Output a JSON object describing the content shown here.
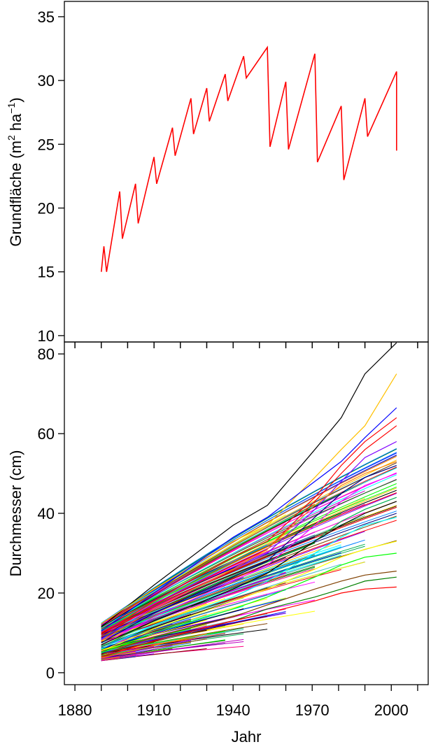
{
  "chart_data": [
    {
      "type": "line",
      "ylabel": "Grundfläche (m² ha⁻¹)",
      "ylabel_parts": {
        "main": "Grundfläche (m",
        "sup1": "2",
        "mid": " ha",
        "sup2": "−1",
        "end": ")"
      },
      "xlim": [
        1876,
        2014
      ],
      "ylim": [
        9.5,
        36.2
      ],
      "yticks": [
        10,
        15,
        20,
        25,
        30,
        35
      ],
      "ytick_labels": [
        "10",
        "15",
        "20",
        "25",
        "30",
        "35"
      ],
      "series": [
        {
          "color": "#ff0000",
          "x": [
            1890,
            1891,
            1892,
            1897,
            1898,
            1903,
            1904,
            1910,
            1911,
            1917,
            1918,
            1924,
            1925,
            1930,
            1931,
            1937,
            1938,
            1944,
            1945,
            1953,
            1954,
            1960,
            1961,
            1971,
            1972,
            1981,
            1982,
            1990,
            1991,
            2002,
            2002
          ],
          "y": [
            15.0,
            17.0,
            15.0,
            21.3,
            17.6,
            21.9,
            18.8,
            24.0,
            21.9,
            26.3,
            24.1,
            28.6,
            25.8,
            29.4,
            26.8,
            30.5,
            28.4,
            31.9,
            30.2,
            32.6,
            24.8,
            29.9,
            24.6,
            32.1,
            23.6,
            28.0,
            22.2,
            28.6,
            25.6,
            30.7,
            24.5
          ]
        }
      ]
    },
    {
      "type": "line",
      "xlabel": "Jahr",
      "ylabel": "Durchmesser (cm)",
      "xlim": [
        1876,
        2014
      ],
      "ylim": [
        -3,
        83
      ],
      "xticks": [
        1880,
        1910,
        1940,
        1970,
        2000
      ],
      "xtick_labels": [
        "1880",
        "1910",
        "1940",
        "1970",
        "2000"
      ],
      "yticks": [
        0,
        20,
        40,
        60,
        80
      ],
      "ytick_labels": [
        "0",
        "20",
        "40",
        "60",
        "80"
      ],
      "series_note": "Approximately 220 individual tree diameter trajectories (one line per tree), each a different colour; values estimated from the plot.",
      "generator": {
        "count": 220,
        "start_year": 1890,
        "measure_years": [
          1890,
          1891,
          1897,
          1903,
          1910,
          1917,
          1924,
          1930,
          1937,
          1944,
          1953,
          1960,
          1971,
          1981,
          1990,
          2002
        ],
        "start_dbh_range": [
          3,
          12.5
        ],
        "end_years": [
          1892,
          1897,
          1903,
          1910,
          1917,
          1924,
          1930,
          1937,
          1944,
          1953,
          1960,
          1971,
          1981,
          1990,
          2002
        ]
      },
      "highlight_series": [
        {
          "color": "#000000",
          "x": [
            1890,
            1910,
            1940,
            1953,
            1971,
            1981,
            1990,
            2002
          ],
          "y": [
            11.5,
            22,
            37,
            42,
            56,
            64,
            75,
            83
          ]
        },
        {
          "color": "#ffc000",
          "x": [
            1890,
            1910,
            1940,
            1953,
            1971,
            1981,
            1990,
            2002
          ],
          "y": [
            12.3,
            21,
            33,
            37,
            49,
            56,
            62,
            75
          ]
        },
        {
          "color": "#0000ff",
          "x": [
            1890,
            1910,
            1940,
            1953,
            1971,
            1981,
            1990,
            2002
          ],
          "y": [
            10.5,
            20,
            34,
            39,
            48,
            53,
            59,
            66.5
          ]
        },
        {
          "color": "#ff0000",
          "x": [
            1890,
            1910,
            1940,
            1953,
            1971,
            1981,
            1990,
            2002
          ],
          "y": [
            9.5,
            18,
            29,
            33,
            44,
            52,
            58,
            64
          ]
        },
        {
          "color": "#ff0000",
          "x": [
            1890,
            1910,
            1940,
            1953,
            1971,
            1981,
            1990,
            2002
          ],
          "y": [
            9,
            17,
            27,
            31,
            43,
            50,
            56,
            62
          ]
        },
        {
          "color": "#8000ff",
          "x": [
            1890,
            1910,
            1940,
            1953,
            1971,
            1981,
            1990,
            2002
          ],
          "y": [
            8.5,
            16,
            26,
            30,
            41,
            48,
            54,
            58
          ]
        },
        {
          "color": "#ff8000",
          "x": [
            1890,
            1910,
            1940,
            1953,
            1971,
            1981,
            1990,
            2002
          ],
          "y": [
            8,
            16,
            26,
            31,
            42,
            47,
            50,
            53
          ]
        },
        {
          "color": "#000080",
          "x": [
            1890,
            1910,
            1940,
            1953,
            1971,
            1981,
            1990,
            2002
          ],
          "y": [
            7.5,
            15,
            24,
            28,
            39,
            45,
            49,
            52
          ]
        },
        {
          "color": "#ff00ff",
          "x": [
            1890,
            1910,
            1940,
            1953,
            1971,
            1981,
            1990,
            2002
          ],
          "y": [
            7,
            14,
            23,
            27,
            37,
            43,
            47,
            50
          ]
        },
        {
          "color": "#00b050",
          "x": [
            1890,
            1910,
            1940,
            1953,
            1971,
            1981,
            1990,
            2002
          ],
          "y": [
            6.5,
            13,
            21,
            25,
            33,
            38,
            41,
            44
          ]
        },
        {
          "color": "#000000",
          "x": [
            1890,
            1910,
            1940,
            1953,
            1971,
            1981,
            1990,
            2002
          ],
          "y": [
            7,
            13,
            21,
            25,
            33,
            37,
            40,
            43
          ]
        },
        {
          "color": "#00ffff",
          "x": [
            1890,
            1910,
            1940,
            1953,
            1971,
            1981,
            1990,
            2002
          ],
          "y": [
            6,
            12,
            19,
            23,
            30,
            34,
            37,
            39
          ]
        },
        {
          "color": "#ffff00",
          "x": [
            1890,
            1910,
            1940,
            1953,
            1971,
            1981,
            1990,
            2002
          ],
          "y": [
            5.5,
            11,
            18,
            21,
            26,
            29,
            31,
            33
          ]
        },
        {
          "color": "#00ff00",
          "x": [
            1890,
            1910,
            1940,
            1953,
            1971,
            1981,
            1990,
            2002
          ],
          "y": [
            5,
            10,
            16,
            19,
            24,
            27,
            29,
            30
          ]
        },
        {
          "color": "#804000",
          "x": [
            1890,
            1910,
            1940,
            1953,
            1971,
            1981,
            1990,
            2002
          ],
          "y": [
            4.5,
            9,
            14,
            17,
            21,
            23,
            24.5,
            25.5
          ]
        },
        {
          "color": "#008000",
          "x": [
            1890,
            1910,
            1940,
            1953,
            1971,
            1981,
            1990,
            2002
          ],
          "y": [
            4,
            8,
            13,
            16,
            19,
            21,
            23,
            24
          ]
        },
        {
          "color": "#ff0000",
          "x": [
            1890,
            1910,
            1940,
            1953,
            1971,
            1981,
            1990,
            2002
          ],
          "y": [
            4,
            8,
            13,
            15,
            18,
            20,
            21,
            21.5
          ]
        }
      ],
      "palette": [
        "#ff0000",
        "#0000ff",
        "#00b050",
        "#000000",
        "#ff00ff",
        "#00ffff",
        "#ffc000",
        "#8000ff",
        "#ff8000",
        "#008000",
        "#000080",
        "#800000",
        "#808000",
        "#00ff00",
        "#ff0080",
        "#0080ff",
        "#804000",
        "#40c0c0",
        "#ffff00",
        "#c000c0"
      ]
    }
  ]
}
